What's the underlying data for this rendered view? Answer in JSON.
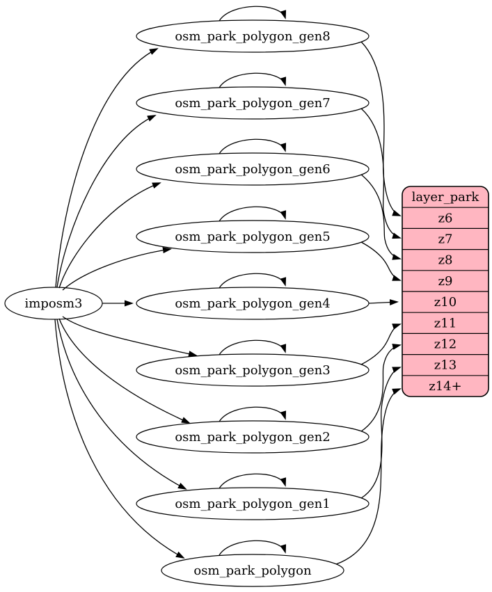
{
  "diagram": {
    "background_color": "#ffffff",
    "edge_color": "#000000",
    "text_color": "#000000",
    "source_node": {
      "id": "imposm3",
      "label": "imposm3"
    },
    "table_nodes": [
      {
        "id": "osm_park_polygon_gen8",
        "label": "osm_park_polygon_gen8"
      },
      {
        "id": "osm_park_polygon_gen7",
        "label": "osm_park_polygon_gen7"
      },
      {
        "id": "osm_park_polygon_gen6",
        "label": "osm_park_polygon_gen6"
      },
      {
        "id": "osm_park_polygon_gen5",
        "label": "osm_park_polygon_gen5"
      },
      {
        "id": "osm_park_polygon_gen4",
        "label": "osm_park_polygon_gen4"
      },
      {
        "id": "osm_park_polygon_gen3",
        "label": "osm_park_polygon_gen3"
      },
      {
        "id": "osm_park_polygon_gen2",
        "label": "osm_park_polygon_gen2"
      },
      {
        "id": "osm_park_polygon_gen1",
        "label": "osm_park_polygon_gen1"
      },
      {
        "id": "osm_park_polygon",
        "label": "osm_park_polygon"
      }
    ],
    "layer_node": {
      "id": "layer_park",
      "title": "layer_park",
      "fill_color": "#ffb6c1",
      "rows": [
        "z6",
        "z7",
        "z8",
        "z9",
        "z10",
        "z11",
        "z12",
        "z13",
        "z14+"
      ]
    },
    "edges": [
      {
        "from": "imposm3",
        "to": "osm_park_polygon_gen8"
      },
      {
        "from": "imposm3",
        "to": "osm_park_polygon_gen7"
      },
      {
        "from": "imposm3",
        "to": "osm_park_polygon_gen6"
      },
      {
        "from": "imposm3",
        "to": "osm_park_polygon_gen5"
      },
      {
        "from": "imposm3",
        "to": "osm_park_polygon_gen4"
      },
      {
        "from": "imposm3",
        "to": "osm_park_polygon_gen3"
      },
      {
        "from": "imposm3",
        "to": "osm_park_polygon_gen2"
      },
      {
        "from": "imposm3",
        "to": "osm_park_polygon_gen1"
      },
      {
        "from": "imposm3",
        "to": "osm_park_polygon"
      },
      {
        "from": "osm_park_polygon_gen8",
        "to": "osm_park_polygon_gen8"
      },
      {
        "from": "osm_park_polygon_gen7",
        "to": "osm_park_polygon_gen7"
      },
      {
        "from": "osm_park_polygon_gen6",
        "to": "osm_park_polygon_gen6"
      },
      {
        "from": "osm_park_polygon_gen5",
        "to": "osm_park_polygon_gen5"
      },
      {
        "from": "osm_park_polygon_gen4",
        "to": "osm_park_polygon_gen4"
      },
      {
        "from": "osm_park_polygon_gen3",
        "to": "osm_park_polygon_gen3"
      },
      {
        "from": "osm_park_polygon_gen2",
        "to": "osm_park_polygon_gen2"
      },
      {
        "from": "osm_park_polygon_gen1",
        "to": "osm_park_polygon_gen1"
      },
      {
        "from": "osm_park_polygon",
        "to": "osm_park_polygon"
      },
      {
        "from": "osm_park_polygon_gen8",
        "to": "z6"
      },
      {
        "from": "osm_park_polygon_gen7",
        "to": "z7"
      },
      {
        "from": "osm_park_polygon_gen6",
        "to": "z8"
      },
      {
        "from": "osm_park_polygon_gen5",
        "to": "z9"
      },
      {
        "from": "osm_park_polygon_gen4",
        "to": "z10"
      },
      {
        "from": "osm_park_polygon_gen3",
        "to": "z11"
      },
      {
        "from": "osm_park_polygon_gen2",
        "to": "z12"
      },
      {
        "from": "osm_park_polygon_gen1",
        "to": "z13"
      },
      {
        "from": "osm_park_polygon",
        "to": "z14+"
      }
    ]
  }
}
